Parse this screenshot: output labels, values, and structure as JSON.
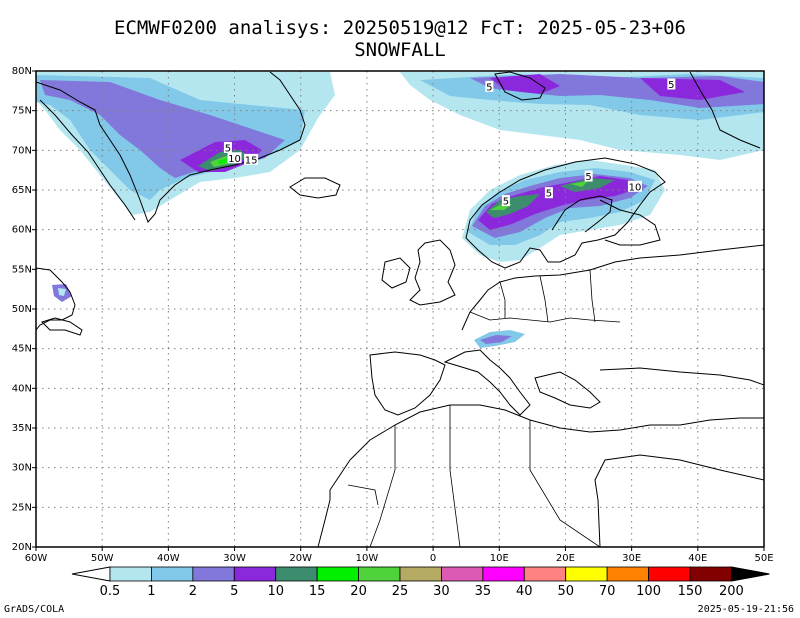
{
  "title": {
    "line1": "ECMWF0200 analisys: 20250519@12 FcT: 2025-05-23+06",
    "line2": "SNOWFALL"
  },
  "lat_labels": [
    "80N",
    "75N",
    "70N",
    "65N",
    "60N",
    "55N",
    "50N",
    "45N",
    "40N",
    "35N",
    "30N",
    "25N",
    "20N"
  ],
  "lon_labels": [
    "60W",
    "50W",
    "40W",
    "30W",
    "20W",
    "10W",
    "0",
    "10E",
    "20E",
    "30E",
    "40E",
    "50E"
  ],
  "map_extent": {
    "lon": [
      -60,
      50
    ],
    "lat": [
      20,
      80
    ]
  },
  "colorbar": {
    "labels": [
      "0.5",
      "1",
      "2",
      "5",
      "10",
      "15",
      "20",
      "25",
      "30",
      "35",
      "40",
      "50",
      "70",
      "100",
      "150",
      "200"
    ],
    "colors": [
      "#b4e6f0",
      "#82c8e8",
      "#8278dc",
      "#8c28dc",
      "#3c8c6e",
      "#00f000",
      "#50d23c",
      "#b4aa64",
      "#dc5ab4",
      "#ff00ff",
      "#ff8282",
      "#ffff00",
      "#ff8200",
      "#ff0000",
      "#820000",
      "#000000"
    ]
  },
  "contour_labels": [
    {
      "text": "5",
      "lon": -31,
      "lat": 70.3
    },
    {
      "text": "10",
      "lon": -30,
      "lat": 69.0
    },
    {
      "text": "15",
      "lon": -27.5,
      "lat": 68.8
    },
    {
      "text": "5",
      "lon": 8.5,
      "lat": 78.0
    },
    {
      "text": "5",
      "lon": 36,
      "lat": 78.3
    },
    {
      "text": "5",
      "lon": 23.5,
      "lat": 66.7
    },
    {
      "text": "10",
      "lon": 30.5,
      "lat": 65.4
    },
    {
      "text": "5",
      "lon": 17.5,
      "lat": 64.6
    },
    {
      "text": "5",
      "lon": 11,
      "lat": 63.6
    }
  ],
  "footer": {
    "credit": "GrADS/COLA",
    "timestamp": "2025-05-19-21:56"
  }
}
